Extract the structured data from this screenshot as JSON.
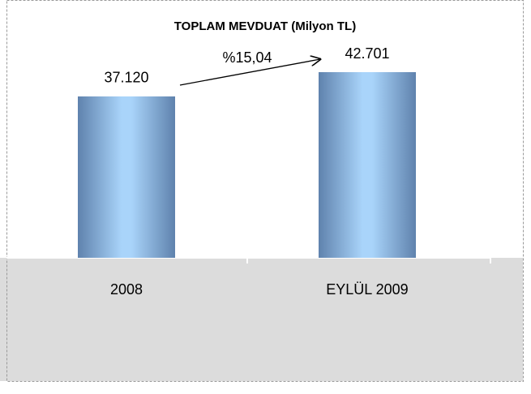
{
  "chart_data": {
    "type": "bar",
    "title": "TOPLAM MEVDUAT (Milyon TL)",
    "categories": [
      "2008",
      "EYLÜL 2009"
    ],
    "values": [
      37120,
      42701
    ],
    "value_labels": [
      "37.120",
      "42.701"
    ],
    "annotation": "%15,04"
  }
}
